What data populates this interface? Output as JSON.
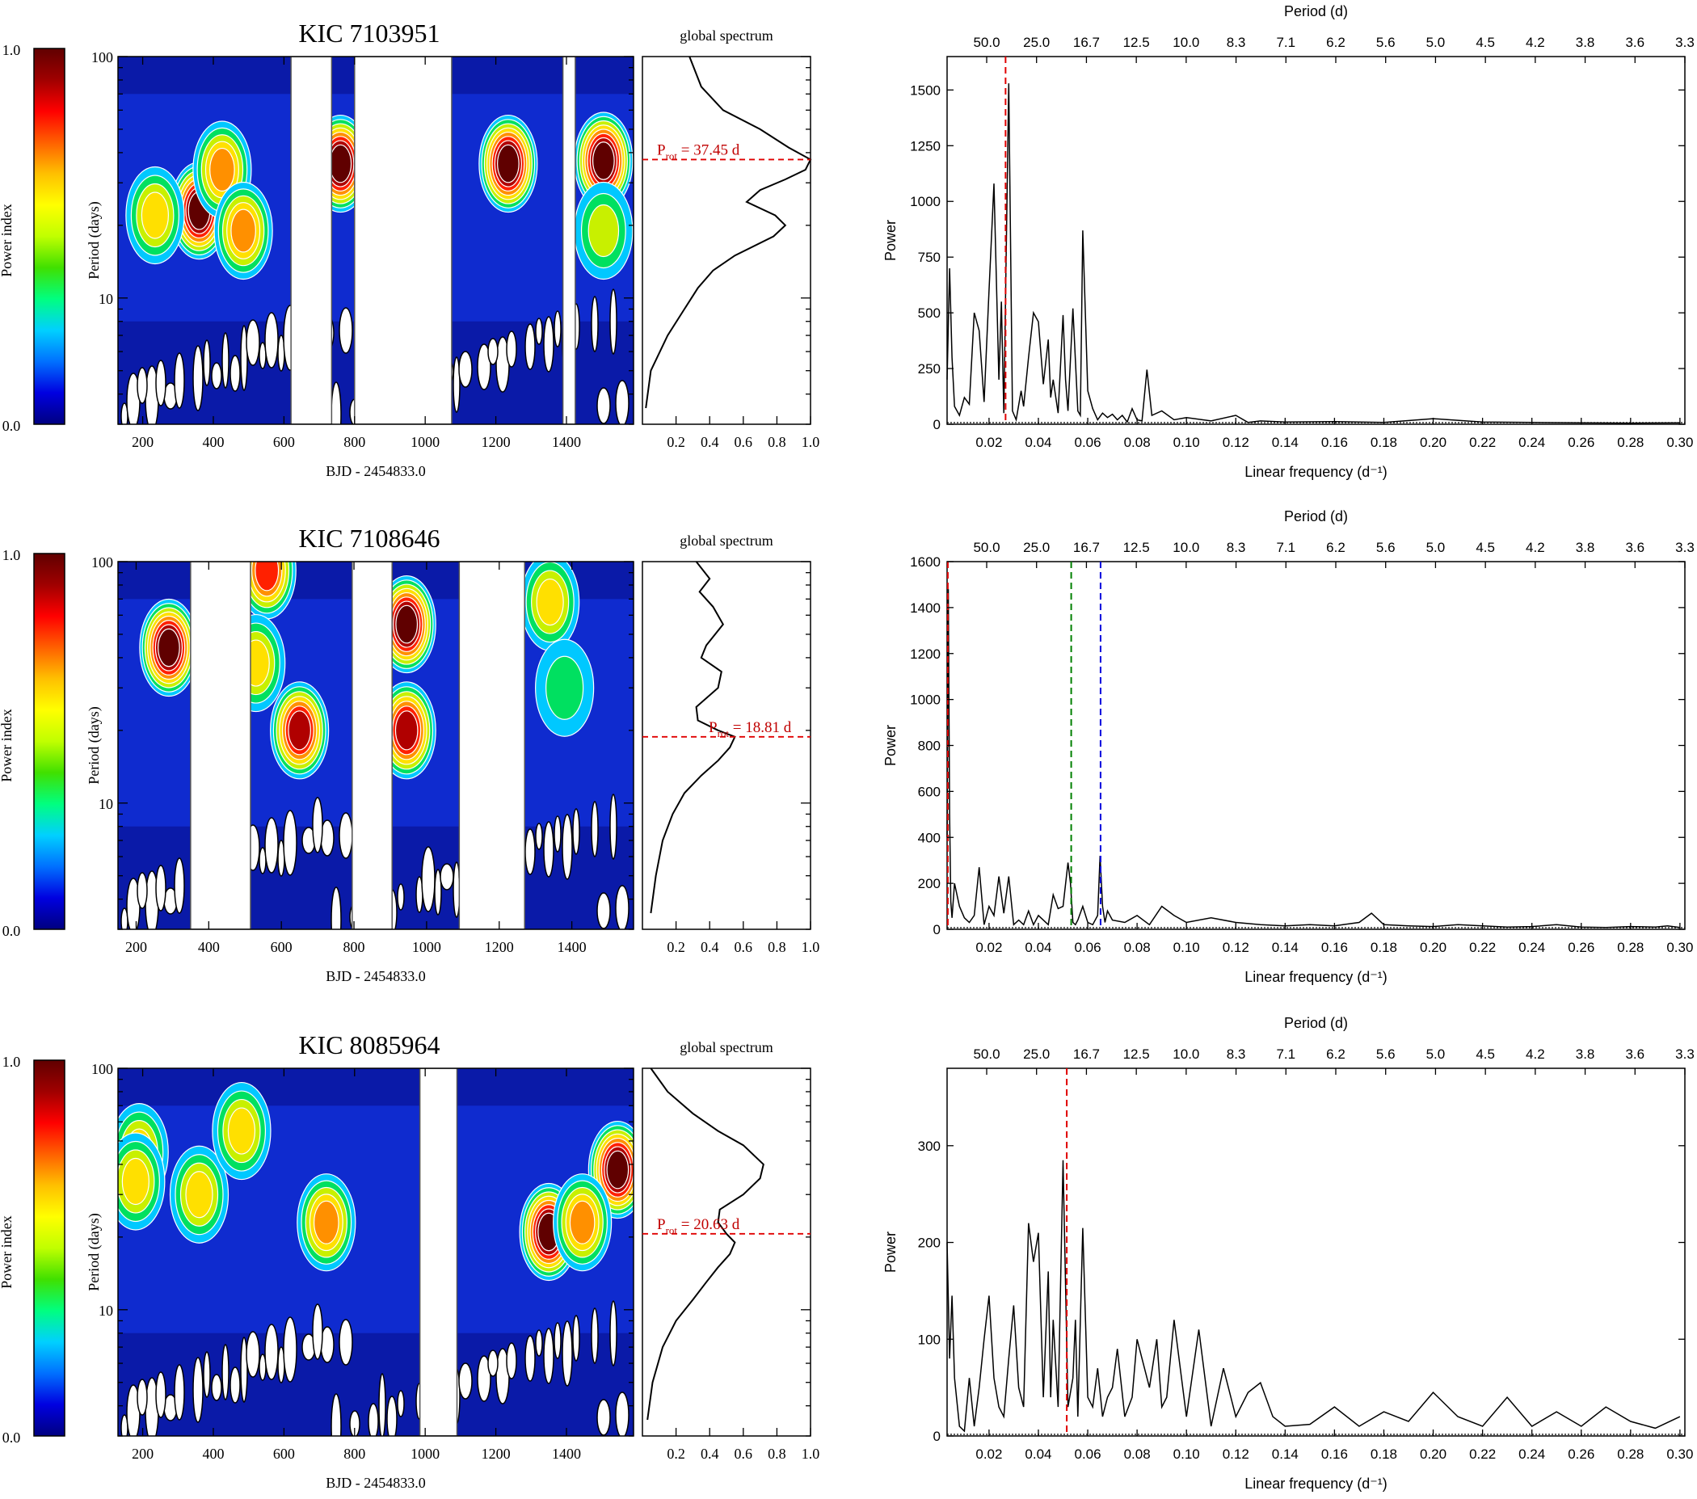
{
  "figure": {
    "colorbar": {
      "label": "Power index",
      "top": "1.0",
      "bottom": "0.0",
      "gradient": [
        "#000080",
        "#0000e0",
        "#0070ff",
        "#00d0ff",
        "#00ff80",
        "#40e000",
        "#c0ff00",
        "#ffff00",
        "#ffc000",
        "#ff6000",
        "#ff0000",
        "#a00000",
        "#600000"
      ]
    },
    "wavelet_common": {
      "ylabel": "Period (days)",
      "xlabel": "BJD - 2454833.0",
      "ytick_labels": [
        "10",
        "100"
      ]
    },
    "global_common": {
      "title": "global spectrum",
      "xtick_labels": [
        "0.2",
        "0.4",
        "0.6",
        "0.8",
        "1.0"
      ]
    },
    "periodogram_common": {
      "top_xlabel": "Period (d)",
      "ylabel": "Power",
      "xlabel": "Linear frequency (d⁻¹)",
      "top_tick_labels": [
        "50.0",
        "25.0",
        "16.7",
        "12.5",
        "10.0",
        "8.3",
        "7.1",
        "6.2",
        "5.6",
        "5.0",
        "4.5",
        "4.2",
        "3.8",
        "3.6",
        "3.3"
      ],
      "bottom_tick_labels": [
        "0.02",
        "0.04",
        "0.06",
        "0.08",
        "0.10",
        "0.12",
        "0.14",
        "0.16",
        "0.18",
        "0.20",
        "0.22",
        "0.24",
        "0.26",
        "0.28",
        "0.30"
      ]
    }
  },
  "chart_data": [
    {
      "type": "heatmap",
      "title": "KIC 7103951",
      "xlabel": "BJD - 2454833.0",
      "ylabel": "Period (days)",
      "xlim": [
        130,
        1590
      ],
      "ylim": [
        3,
        100
      ],
      "xtick_labels": [
        "200",
        "400",
        "600",
        "800",
        "1000",
        "1200",
        "1400"
      ],
      "gaps_bjd": [
        [
          620,
          735
        ],
        [
          800,
          1075
        ],
        [
          1390,
          1425
        ]
      ],
      "power_peaks": [
        {
          "bjd": 360,
          "period": 23,
          "power": 0.95
        },
        {
          "bjd": 235,
          "period": 22,
          "power": 0.55
        },
        {
          "bjd": 425,
          "period": 34,
          "power": 0.6
        },
        {
          "bjd": 485,
          "period": 19,
          "power": 0.65
        },
        {
          "bjd": 760,
          "period": 36,
          "power": 1.0
        },
        {
          "bjd": 1235,
          "period": 36,
          "power": 1.0
        },
        {
          "bjd": 1505,
          "period": 37,
          "power": 1.0
        },
        {
          "bjd": 1505,
          "period": 19,
          "power": 0.4
        }
      ],
      "global_spectrum": {
        "title": "global spectrum",
        "xlim": [
          0,
          1.0
        ],
        "period": [
          3.5,
          5,
          7,
          9,
          11,
          13,
          15,
          18,
          20,
          22,
          25,
          28,
          31,
          34,
          37.45,
          42,
          50,
          60,
          75,
          100
        ],
        "power": [
          0.02,
          0.05,
          0.15,
          0.25,
          0.33,
          0.42,
          0.55,
          0.78,
          0.85,
          0.79,
          0.62,
          0.7,
          0.85,
          0.97,
          1.0,
          0.87,
          0.7,
          0.48,
          0.35,
          0.28
        ],
        "prot_label": "P",
        "prot_sub": "rot",
        "prot_value": "= 37.45 d",
        "prot_period": 37.45
      },
      "periodogram": {
        "type": "line",
        "xlabel": "Linear frequency (d⁻¹)",
        "ylabel": "Power",
        "top_xlabel": "Period (d)",
        "xlim": [
          0.003,
          0.302
        ],
        "ylim": [
          0,
          1650
        ],
        "ytick_labels": [
          "0",
          "250",
          "500",
          "750",
          "1000",
          "1250",
          "1500"
        ],
        "frequency": [
          0.003,
          0.004,
          0.005,
          0.006,
          0.008,
          0.01,
          0.012,
          0.014,
          0.016,
          0.018,
          0.02,
          0.022,
          0.024,
          0.025,
          0.026,
          0.028,
          0.0295,
          0.031,
          0.033,
          0.034,
          0.036,
          0.038,
          0.04,
          0.042,
          0.044,
          0.045,
          0.046,
          0.048,
          0.05,
          0.051,
          0.052,
          0.054,
          0.056,
          0.057,
          0.058,
          0.06,
          0.062,
          0.064,
          0.066,
          0.068,
          0.07,
          0.072,
          0.074,
          0.076,
          0.078,
          0.08,
          0.082,
          0.084,
          0.086,
          0.09,
          0.095,
          0.1,
          0.11,
          0.12,
          0.125,
          0.13,
          0.14,
          0.16,
          0.18,
          0.2,
          0.22,
          0.24,
          0.26,
          0.28,
          0.3
        ],
        "power": [
          200,
          700,
          300,
          80,
          40,
          120,
          90,
          500,
          420,
          100,
          600,
          1080,
          200,
          550,
          50,
          1530,
          60,
          20,
          150,
          80,
          300,
          500,
          460,
          180,
          380,
          120,
          200,
          50,
          490,
          200,
          60,
          520,
          60,
          40,
          870,
          150,
          70,
          20,
          50,
          30,
          45,
          20,
          40,
          10,
          70,
          20,
          15,
          245,
          40,
          60,
          20,
          30,
          15,
          40,
          8,
          15,
          10,
          12,
          8,
          25,
          10,
          8,
          6,
          5,
          6
        ],
        "marker_lines": [
          {
            "freq": 0.0267,
            "color": "#e00000"
          }
        ]
      }
    },
    {
      "type": "heatmap",
      "title": "KIC 7108646",
      "xlabel": "BJD - 2454833.0",
      "ylabel": "Period (days)",
      "xlim": [
        150,
        1570
      ],
      "ylim": [
        3,
        100
      ],
      "xtick_labels": [
        "200",
        "400",
        "600",
        "800",
        "1000",
        "1200",
        "1400"
      ],
      "gaps_bjd": [
        [
          350,
          515
        ],
        [
          795,
          905
        ],
        [
          1090,
          1270
        ]
      ],
      "power_peaks": [
        {
          "bjd": 290,
          "period": 44,
          "power": 1.0
        },
        {
          "bjd": 560,
          "period": 92,
          "power": 0.75
        },
        {
          "bjd": 530,
          "period": 38,
          "power": 0.5
        },
        {
          "bjd": 650,
          "period": 20,
          "power": 0.9
        },
        {
          "bjd": 945,
          "period": 55,
          "power": 1.0
        },
        {
          "bjd": 945,
          "period": 20,
          "power": 0.85
        },
        {
          "bjd": 1340,
          "period": 68,
          "power": 0.45
        },
        {
          "bjd": 1380,
          "period": 30,
          "power": 0.3
        }
      ],
      "global_spectrum": {
        "title": "global spectrum",
        "xlim": [
          0,
          1.0
        ],
        "period": [
          3.5,
          5,
          7,
          9,
          11,
          13,
          15,
          17,
          18.81,
          20,
          22,
          25,
          30,
          35,
          40,
          45,
          55,
          65,
          75,
          85,
          100
        ],
        "power": [
          0.05,
          0.08,
          0.12,
          0.18,
          0.25,
          0.35,
          0.45,
          0.52,
          0.55,
          0.45,
          0.33,
          0.32,
          0.45,
          0.47,
          0.35,
          0.38,
          0.48,
          0.42,
          0.34,
          0.4,
          0.32
        ],
        "prot_label": "P",
        "prot_sub": "rot",
        "prot_value": "= 18.81 d",
        "prot_period": 18.81
      },
      "periodogram": {
        "type": "line",
        "xlabel": "Linear frequency (d⁻¹)",
        "ylabel": "Power",
        "top_xlabel": "Period (d)",
        "xlim": [
          0.003,
          0.302
        ],
        "ylim": [
          0,
          1600
        ],
        "ytick_labels": [
          "0",
          "200",
          "400",
          "600",
          "800",
          "1000",
          "1200",
          "1400",
          "1600"
        ],
        "frequency": [
          0.003,
          0.0035,
          0.004,
          0.0045,
          0.005,
          0.006,
          0.008,
          0.01,
          0.012,
          0.014,
          0.016,
          0.018,
          0.02,
          0.022,
          0.024,
          0.026,
          0.028,
          0.03,
          0.032,
          0.034,
          0.036,
          0.038,
          0.04,
          0.042,
          0.044,
          0.046,
          0.048,
          0.05,
          0.052,
          0.053,
          0.054,
          0.055,
          0.056,
          0.058,
          0.06,
          0.062,
          0.064,
          0.065,
          0.066,
          0.067,
          0.068,
          0.07,
          0.075,
          0.08,
          0.085,
          0.09,
          0.095,
          0.1,
          0.11,
          0.12,
          0.13,
          0.14,
          0.15,
          0.16,
          0.17,
          0.175,
          0.18,
          0.19,
          0.2,
          0.21,
          0.22,
          0.23,
          0.24,
          0.25,
          0.26,
          0.27,
          0.28,
          0.29,
          0.295,
          0.3
        ],
        "power": [
          400,
          1480,
          500,
          120,
          50,
          200,
          100,
          50,
          30,
          60,
          270,
          20,
          100,
          60,
          230,
          70,
          230,
          20,
          40,
          20,
          80,
          20,
          60,
          40,
          20,
          150,
          90,
          100,
          290,
          200,
          30,
          20,
          40,
          100,
          30,
          20,
          60,
          320,
          100,
          30,
          80,
          40,
          30,
          60,
          20,
          100,
          60,
          30,
          50,
          30,
          20,
          15,
          20,
          15,
          30,
          70,
          20,
          15,
          12,
          20,
          15,
          10,
          12,
          20,
          10,
          8,
          12,
          10,
          15,
          8
        ],
        "marker_lines": [
          {
            "freq": 0.0033,
            "color": "#e00000"
          },
          {
            "freq": 0.0533,
            "color": "#008000"
          },
          {
            "freq": 0.0652,
            "color": "#0000dd"
          }
        ]
      }
    },
    {
      "type": "heatmap",
      "title": "KIC 8085964",
      "xlabel": "BJD - 2454833.0",
      "ylabel": "Period (days)",
      "xlim": [
        130,
        1590
      ],
      "ylim": [
        3,
        100
      ],
      "xtick_labels": [
        "200",
        "400",
        "600",
        "800",
        "1000",
        "1200",
        "1400"
      ],
      "gaps_bjd": [
        [
          985,
          1090
        ]
      ],
      "power_peaks": [
        {
          "bjd": 190,
          "period": 45,
          "power": 0.55
        },
        {
          "bjd": 180,
          "period": 34,
          "power": 0.55
        },
        {
          "bjd": 360,
          "period": 30,
          "power": 0.55
        },
        {
          "bjd": 480,
          "period": 55,
          "power": 0.45
        },
        {
          "bjd": 720,
          "period": 23,
          "power": 0.6
        },
        {
          "bjd": 1350,
          "period": 21,
          "power": 0.95
        },
        {
          "bjd": 1545,
          "period": 38,
          "power": 1.0
        },
        {
          "bjd": 1445,
          "period": 23,
          "power": 0.6
        }
      ],
      "global_spectrum": {
        "title": "global spectrum",
        "xlim": [
          0,
          1.0
        ],
        "period": [
          3.5,
          5,
          7,
          9,
          11,
          13,
          15,
          17,
          19,
          20.63,
          23,
          26,
          30,
          35,
          40,
          48,
          55,
          65,
          80,
          100
        ],
        "power": [
          0.03,
          0.06,
          0.12,
          0.2,
          0.3,
          0.38,
          0.45,
          0.52,
          0.55,
          0.5,
          0.45,
          0.46,
          0.6,
          0.7,
          0.72,
          0.6,
          0.45,
          0.3,
          0.15,
          0.05
        ],
        "prot_label": "P",
        "prot_sub": "rot",
        "prot_value": "= 20.63 d",
        "prot_period": 20.63
      },
      "periodogram": {
        "type": "line",
        "xlabel": "Linear frequency (d⁻¹)",
        "ylabel": "Power",
        "top_xlabel": "Period (d)",
        "xlim": [
          0.003,
          0.302
        ],
        "ylim": [
          0,
          380
        ],
        "ytick_labels": [
          "0",
          "100",
          "200",
          "300"
        ],
        "frequency": [
          0.003,
          0.004,
          0.005,
          0.006,
          0.008,
          0.01,
          0.012,
          0.014,
          0.016,
          0.018,
          0.02,
          0.022,
          0.024,
          0.026,
          0.028,
          0.03,
          0.032,
          0.034,
          0.036,
          0.038,
          0.04,
          0.042,
          0.044,
          0.045,
          0.046,
          0.048,
          0.05,
          0.052,
          0.054,
          0.055,
          0.056,
          0.058,
          0.06,
          0.062,
          0.064,
          0.066,
          0.068,
          0.07,
          0.072,
          0.075,
          0.078,
          0.08,
          0.082,
          0.085,
          0.088,
          0.09,
          0.092,
          0.095,
          0.1,
          0.105,
          0.11,
          0.115,
          0.12,
          0.125,
          0.13,
          0.135,
          0.14,
          0.15,
          0.16,
          0.17,
          0.18,
          0.19,
          0.2,
          0.21,
          0.22,
          0.23,
          0.24,
          0.25,
          0.26,
          0.27,
          0.28,
          0.29,
          0.3
        ],
        "power": [
          200,
          80,
          145,
          60,
          10,
          5,
          60,
          10,
          50,
          100,
          145,
          60,
          30,
          20,
          80,
          135,
          50,
          30,
          220,
          180,
          210,
          40,
          170,
          40,
          120,
          30,
          285,
          30,
          60,
          120,
          20,
          215,
          40,
          30,
          70,
          20,
          40,
          50,
          90,
          20,
          40,
          100,
          80,
          50,
          100,
          30,
          40,
          120,
          20,
          110,
          10,
          70,
          20,
          45,
          55,
          20,
          10,
          12,
          30,
          10,
          25,
          15,
          45,
          20,
          10,
          40,
          10,
          25,
          10,
          30,
          15,
          8,
          20
        ],
        "marker_lines": [
          {
            "freq": 0.0515,
            "color": "#e00000"
          }
        ]
      }
    }
  ]
}
